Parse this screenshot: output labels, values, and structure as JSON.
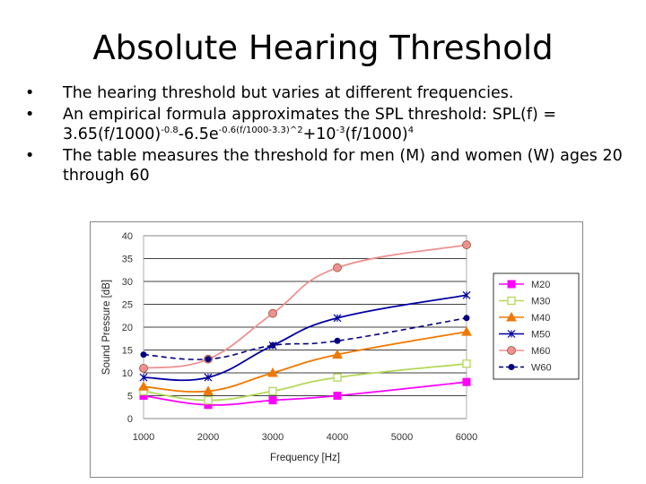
{
  "slide": {
    "title": "Absolute Hearing Threshold",
    "bullet_glyph": "•",
    "bullet1": "The hearing threshold but varies at different frequencies.",
    "bullet2_text": "An empirical formula approximates the SPL threshold: SPL(f) =",
    "formula": {
      "p1": "3.65(f/1000)",
      "s1": "-0.8",
      "p2": "-6.5e",
      "s2": "-0.6(f/1000-3.3)^2",
      "p3": "+10",
      "s3": "-3",
      "p4": "(f/1000)",
      "s4": "4"
    },
    "bullet3": "The table measures the threshold for men (M) and women (W) ages 20 through 60"
  },
  "chart_data": {
    "type": "line",
    "x": [
      1000,
      2000,
      3000,
      4000,
      6000
    ],
    "xlabel": "Frequency [Hz]",
    "ylabel": "Sound Pressure [dB]",
    "xlim": [
      1000,
      6000
    ],
    "ylim": [
      0,
      40
    ],
    "xticks": [
      "1000",
      "2000",
      "3000",
      "4000",
      "5000",
      "6000"
    ],
    "yticks": [
      "0",
      "5",
      "10",
      "15",
      "20",
      "25",
      "30",
      "35",
      "40"
    ],
    "grid": "horizontal",
    "legend_position": "right",
    "series": [
      {
        "name": "M20",
        "values": [
          5,
          3,
          4,
          5,
          8
        ],
        "color": "#ff00ff",
        "marker": "square",
        "dash": false
      },
      {
        "name": "M30",
        "values": [
          6,
          4,
          6,
          9,
          12
        ],
        "color": "#b4d858",
        "marker": "square-open",
        "dash": false
      },
      {
        "name": "M40",
        "values": [
          7,
          6,
          10,
          14,
          19
        ],
        "color": "#f07800",
        "marker": "triangle",
        "dash": false
      },
      {
        "name": "M50",
        "values": [
          9,
          9,
          16,
          22,
          27
        ],
        "color": "#0000a0",
        "marker": "star",
        "dash": false
      },
      {
        "name": "M60",
        "values": [
          11,
          13,
          23,
          33,
          38
        ],
        "color": "#f09090",
        "marker": "circle",
        "dash": false
      },
      {
        "name": "W60",
        "values": [
          14,
          13,
          16,
          17,
          22
        ],
        "color": "#000080",
        "marker": "dot",
        "dash": true
      }
    ]
  }
}
